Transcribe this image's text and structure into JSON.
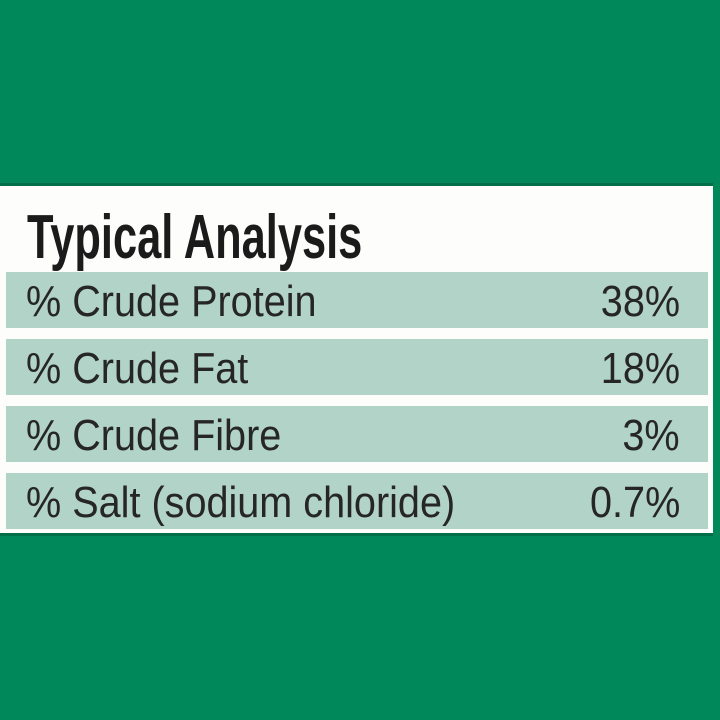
{
  "label": {
    "title": "Typical Analysis",
    "rows": [
      {
        "label": "% Crude Protein",
        "value": "38%"
      },
      {
        "label": "% Crude Fat",
        "value": "18%"
      },
      {
        "label": "% Crude Fibre",
        "value": "3%"
      },
      {
        "label": "% Salt (sodium chloride)",
        "value": "0.7%"
      }
    ],
    "colors": {
      "background_green": "#00875a",
      "row_background": "#b2d3c7",
      "panel_background": "#fdfdfc",
      "text": "#262626"
    }
  }
}
